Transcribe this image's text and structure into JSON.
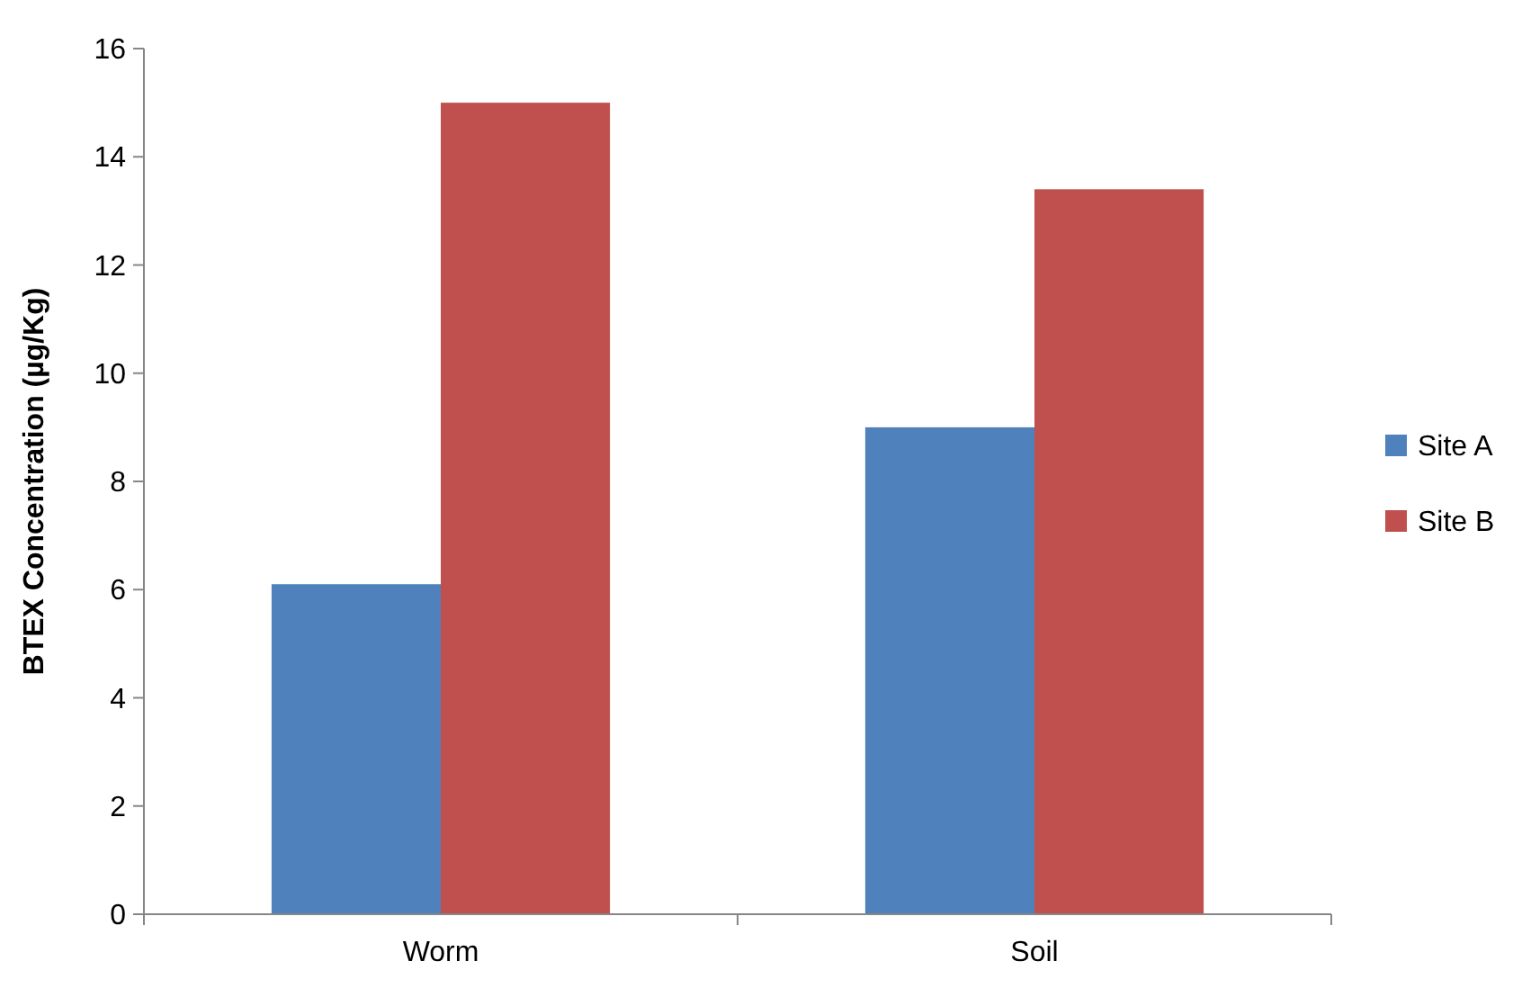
{
  "chart_data": {
    "type": "bar",
    "ylabel": "BTEX Concentration (µg/Kg)",
    "categories": [
      "Worm",
      "Soil"
    ],
    "series": [
      {
        "name": "Site A",
        "color": "#4f81bd",
        "values": [
          6.1,
          9.0
        ]
      },
      {
        "name": "Site B",
        "color": "#c0504d",
        "values": [
          15.0,
          13.4
        ]
      }
    ],
    "ylim": [
      0,
      16
    ],
    "yticks": [
      0,
      2,
      4,
      6,
      8,
      10,
      12,
      14,
      16
    ],
    "grid": false,
    "legend": "right"
  }
}
